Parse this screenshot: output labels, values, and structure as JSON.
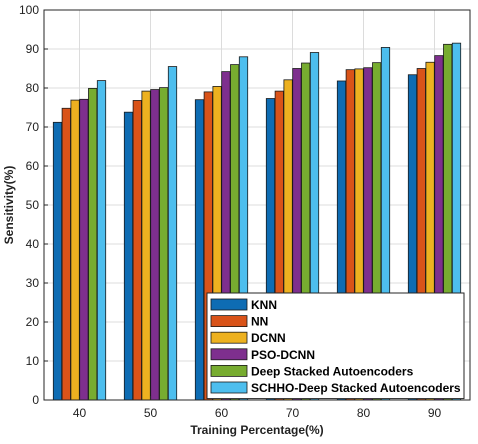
{
  "chart_data": {
    "type": "bar",
    "title": "",
    "xlabel": "Training Percentage(%)",
    "ylabel": "Sensitivity(%)",
    "ylim": [
      0,
      100
    ],
    "yticks": [
      "0",
      "10",
      "20",
      "30",
      "40",
      "50",
      "60",
      "70",
      "80",
      "90",
      "100"
    ],
    "categories": [
      "40",
      "50",
      "60",
      "70",
      "80",
      "90"
    ],
    "grid": true,
    "legend_position": "bottom-right",
    "series": [
      {
        "name": "KNN",
        "color": "#0E6CB3",
        "values": [
          71.2,
          73.8,
          77.0,
          77.3,
          81.8,
          83.4
        ]
      },
      {
        "name": "NN",
        "color": "#D95319",
        "values": [
          74.8,
          76.8,
          79.0,
          79.2,
          84.7,
          85.0
        ]
      },
      {
        "name": "DCNN",
        "color": "#EDB120",
        "values": [
          76.9,
          79.2,
          80.4,
          82.1,
          84.9,
          86.6
        ]
      },
      {
        "name": "PSO-DCNN",
        "color": "#7E2F8E",
        "values": [
          77.1,
          79.6,
          84.2,
          85.0,
          85.2,
          88.3
        ]
      },
      {
        "name": "Deep Stacked Autoencoders",
        "color": "#77AC30",
        "values": [
          79.9,
          80.1,
          86.0,
          86.4,
          86.5,
          91.2
        ]
      },
      {
        "name": "SCHHO-Deep Stacked Autoencoders",
        "color": "#4DBEEE",
        "values": [
          81.9,
          85.5,
          88.0,
          89.1,
          90.4,
          91.5
        ]
      }
    ]
  }
}
